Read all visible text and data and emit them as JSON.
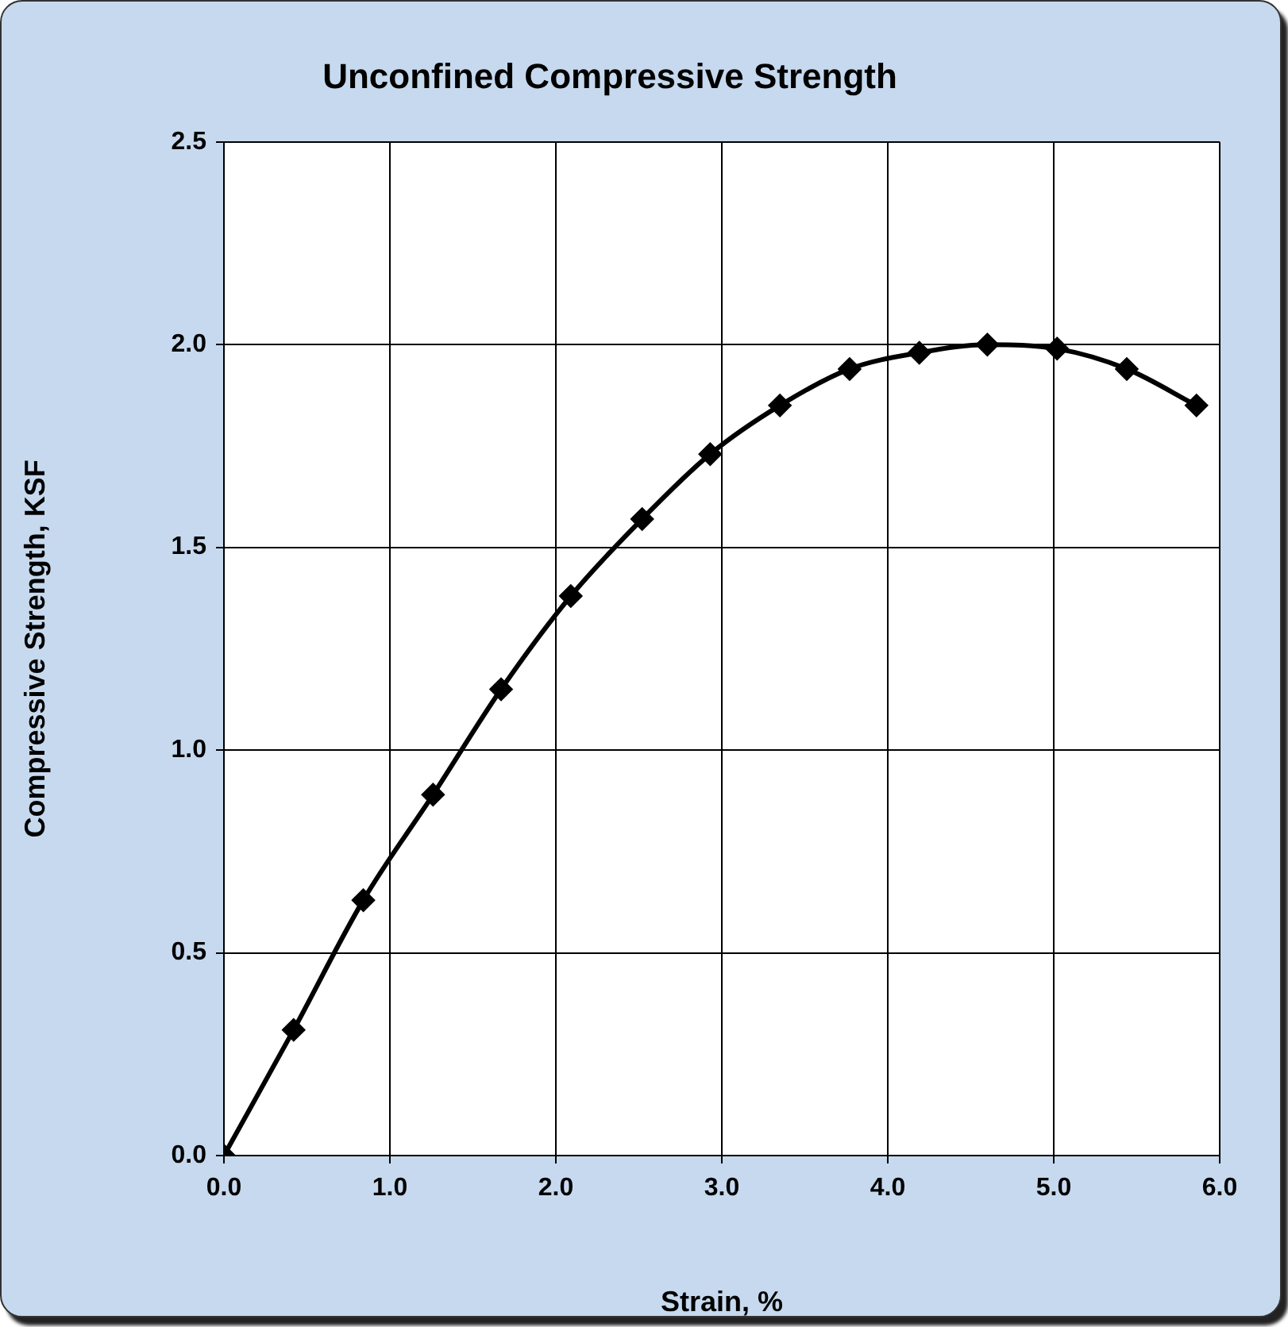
{
  "chart_data": {
    "type": "line",
    "title": "Unconfined Compressive Strength",
    "xlabel": "Strain, %",
    "ylabel": "Compressive Strength, KSF",
    "x": [
      0,
      0.42,
      0.84,
      1.26,
      1.67,
      2.09,
      2.52,
      2.93,
      3.35,
      3.77,
      4.19,
      4.6,
      5.02,
      5.44,
      5.86
    ],
    "series": [
      {
        "color": "#000000",
        "values": [
          0,
          0.31,
          0.63,
          0.89,
          1.15,
          1.38,
          1.57,
          1.73,
          1.85,
          1.94,
          1.98,
          2.0,
          1.99,
          1.94,
          1.85
        ]
      }
    ],
    "xlim": [
      0,
      6
    ],
    "xticks": [
      {
        "value": 0,
        "label": "0.0"
      },
      {
        "value": 1,
        "label": "1.0"
      },
      {
        "value": 2,
        "label": "2.0"
      },
      {
        "value": 3,
        "label": "3.0"
      },
      {
        "value": 4,
        "label": "4.0"
      },
      {
        "value": 5,
        "label": "5.0"
      },
      {
        "value": 6,
        "label": "6.0"
      }
    ],
    "ylim": [
      0,
      2.5
    ],
    "yticks": [
      {
        "value": 0,
        "label": "0.0"
      },
      {
        "value": 0.5,
        "label": "0.5"
      },
      {
        "value": 1,
        "label": "1.0"
      },
      {
        "value": 1.5,
        "label": "1.5"
      },
      {
        "value": 2,
        "label": "2.0"
      },
      {
        "value": 2.5,
        "label": "2.5"
      }
    ],
    "grid": true,
    "legend": false,
    "marker": "diamond",
    "line_style": "solid"
  }
}
